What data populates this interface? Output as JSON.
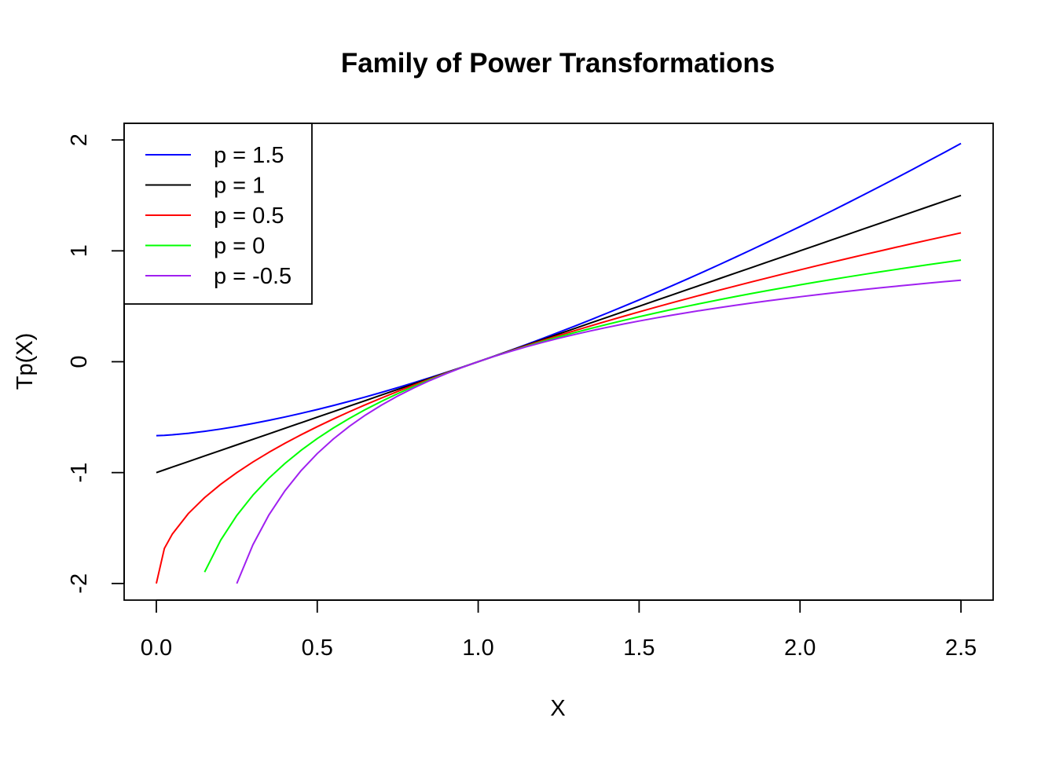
{
  "chart_data": {
    "type": "line",
    "title": "Family of Power Transformations",
    "xlabel": "X",
    "ylabel": "Tp(X)",
    "xlim": [
      -0.1,
      2.6
    ],
    "ylim": [
      -2.15,
      2.15
    ],
    "xticks": [
      0.0,
      0.5,
      1.0,
      1.5,
      2.0,
      2.5
    ],
    "xtick_labels": [
      "0.0",
      "0.5",
      "1.0",
      "1.5",
      "2.0",
      "2.5"
    ],
    "yticks": [
      -2,
      -1,
      0,
      1,
      2
    ],
    "ytick_labels": [
      "-2",
      "-1",
      "0",
      "1",
      "2"
    ],
    "grid": false,
    "legend_position": "top-left",
    "x": [
      0.0,
      0.025,
      0.05,
      0.1,
      0.15,
      0.2,
      0.25,
      0.3,
      0.35,
      0.4,
      0.45,
      0.5,
      0.55,
      0.6,
      0.65,
      0.7,
      0.75,
      0.8,
      0.85,
      0.9,
      0.95,
      1.0,
      1.05,
      1.1,
      1.15,
      1.2,
      1.25,
      1.3,
      1.35,
      1.4,
      1.45,
      1.5,
      1.55,
      1.6,
      1.65,
      1.7,
      1.75,
      1.8,
      1.85,
      1.9,
      1.95,
      2.0,
      2.05,
      2.1,
      2.15,
      2.2,
      2.25,
      2.3,
      2.35,
      2.4,
      2.45,
      2.5
    ],
    "series": [
      {
        "name": "p = 1.5",
        "color": "#0000FF",
        "values": [
          -0.6667,
          -0.6641,
          -0.6592,
          -0.6456,
          -0.6279,
          -0.607,
          -0.5833,
          -0.5571,
          -0.5286,
          -0.498,
          -0.4654,
          -0.431,
          -0.3947,
          -0.3568,
          -0.3173,
          -0.2762,
          -0.2337,
          -0.1896,
          -0.1442,
          -0.0975,
          -0.0494,
          0.0,
          0.0507,
          0.1025,
          0.1555,
          0.2097,
          0.2649,
          0.3213,
          0.3788,
          0.4374,
          0.497,
          0.5577,
          0.6194,
          0.6822,
          0.746,
          0.8108,
          0.8766,
          0.9434,
          1.0112,
          1.0799,
          1.1496,
          1.219,
          1.29,
          1.362,
          1.435,
          1.509,
          1.5833,
          1.6587,
          1.7346,
          1.8122,
          1.8896,
          1.9685
        ]
      },
      {
        "name": "p = 1",
        "color": "#000000",
        "values": [
          -1.0,
          -0.975,
          -0.95,
          -0.9,
          -0.85,
          -0.8,
          -0.75,
          -0.7,
          -0.65,
          -0.6,
          -0.55,
          -0.5,
          -0.45,
          -0.4,
          -0.35,
          -0.3,
          -0.25,
          -0.2,
          -0.15,
          -0.1,
          -0.05,
          0.0,
          0.05,
          0.1,
          0.15,
          0.2,
          0.25,
          0.3,
          0.35,
          0.4,
          0.45,
          0.5,
          0.55,
          0.6,
          0.65,
          0.7,
          0.75,
          0.8,
          0.85,
          0.9,
          0.95,
          1.0,
          1.05,
          1.1,
          1.15,
          1.2,
          1.25,
          1.3,
          1.35,
          1.4,
          1.45,
          1.5
        ]
      },
      {
        "name": "p = 0.5",
        "color": "#FF0000",
        "values": [
          -2.0,
          -1.6838,
          -1.5528,
          -1.3675,
          -1.2254,
          -1.1056,
          -1.0,
          -0.9046,
          -0.8168,
          -0.7351,
          -0.6584,
          -0.5858,
          -0.5168,
          -0.4508,
          -0.3875,
          -0.3267,
          -0.2679,
          -0.2111,
          -0.1561,
          -0.1026,
          -0.0506,
          0.0,
          0.0494,
          0.0976,
          0.1448,
          0.1909,
          0.2361,
          0.2804,
          0.3238,
          0.3664,
          0.4083,
          0.4495,
          0.49,
          0.5298,
          0.569,
          0.6076,
          0.6458,
          0.6833,
          0.7203,
          0.7568,
          0.7928,
          0.8284,
          0.8636,
          0.8983,
          0.9326,
          0.9665,
          1.0,
          1.0332,
          1.066,
          1.0984,
          1.1305,
          1.1623
        ]
      },
      {
        "name": "p = 0",
        "color": "#00FF00",
        "values": [
          null,
          null,
          null,
          null,
          -1.8971,
          -1.6094,
          -1.3863,
          -1.204,
          -1.0498,
          -0.9163,
          -0.7985,
          -0.6931,
          -0.5978,
          -0.5108,
          -0.4308,
          -0.3567,
          -0.2877,
          -0.2231,
          -0.1625,
          -0.1054,
          -0.0513,
          0.0,
          0.0488,
          0.0953,
          0.1398,
          0.1823,
          0.2231,
          0.2624,
          0.3001,
          0.3365,
          0.3716,
          0.4055,
          0.4383,
          0.47,
          0.5008,
          0.5306,
          0.5596,
          0.5878,
          0.6152,
          0.6419,
          0.6678,
          0.6931,
          0.7178,
          0.7419,
          0.7655,
          0.7885,
          0.8109,
          0.8329,
          0.8544,
          0.8755,
          0.8961,
          0.9163
        ]
      },
      {
        "name": "p = -0.5",
        "color": "#A020F0",
        "values": [
          null,
          null,
          null,
          null,
          null,
          null,
          -2.0,
          -1.6515,
          -1.3806,
          -1.1623,
          -0.9814,
          -0.8284,
          -0.6968,
          -0.582,
          -0.4807,
          -0.3905,
          -0.3094,
          -0.2361,
          -0.1693,
          -0.1082,
          -0.052,
          0.0,
          0.0482,
          0.0931,
          0.135,
          0.1743,
          0.2111,
          0.2459,
          0.2786,
          0.3096,
          0.339,
          0.367,
          0.3935,
          0.4189,
          0.443,
          0.4661,
          0.4882,
          0.5093,
          0.5295,
          0.549,
          0.5677,
          0.5858,
          0.6031,
          0.6199,
          0.6361,
          0.6516,
          0.6667,
          0.6812,
          0.6954,
          0.709,
          0.7222,
          0.7351
        ]
      }
    ]
  }
}
